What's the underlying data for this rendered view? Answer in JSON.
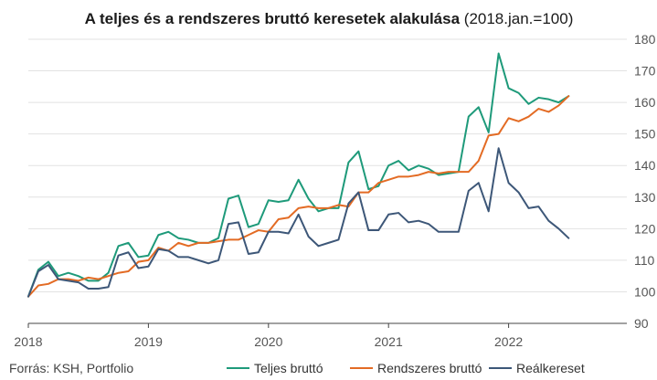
{
  "chart_data": {
    "type": "line",
    "title_bold": "A teljes és a rendszeres bruttó keresetek alakulása",
    "title_suffix": " (2018.jan.=100)",
    "source": "Forrás: KSH, Portfolio",
    "ylim": [
      90,
      180
    ],
    "y_ticks": [
      "90",
      "100",
      "110",
      "120",
      "130",
      "140",
      "150",
      "160",
      "170",
      "180"
    ],
    "y_tick_values": [
      90,
      100,
      110,
      120,
      130,
      140,
      150,
      160,
      170,
      180
    ],
    "x_ticks": [
      "2018",
      "2019",
      "2020",
      "2021",
      "2022"
    ],
    "x_tick_months": [
      0,
      12,
      24,
      36,
      48
    ],
    "x_start": "2018-01",
    "grid": "horizontal",
    "legend_position": "bottom",
    "series": [
      {
        "name": "Teljes bruttó",
        "color": "#1e9a7a",
        "values": [
          98.5,
          107,
          109.5,
          105,
          106,
          105,
          103.5,
          103.5,
          106,
          114.5,
          115.5,
          111,
          111.5,
          118,
          119,
          117,
          116.5,
          115.5,
          115.5,
          117,
          129.5,
          130.5,
          120.5,
          121.5,
          129,
          128.5,
          129,
          135.5,
          129.5,
          125.5,
          126.5,
          126.5,
          141,
          144.5,
          132.5,
          133.5,
          140,
          141.5,
          138.5,
          140,
          139,
          137,
          137.5,
          138,
          155.5,
          158.5,
          150.5,
          175.5,
          164.5,
          163,
          159.5,
          161.5,
          161,
          160,
          162
        ]
      },
      {
        "name": "Rendszeres bruttó",
        "color": "#e36b24",
        "values": [
          98.5,
          102,
          102.5,
          104,
          104,
          103.5,
          104.5,
          104,
          105,
          106,
          106.5,
          109.5,
          110,
          114,
          113,
          115.5,
          114.5,
          115.5,
          115.5,
          116,
          116.5,
          116.5,
          118,
          119.5,
          119,
          123,
          123.5,
          126.5,
          127,
          126.5,
          126.5,
          127.5,
          127,
          131.5,
          131.5,
          134.5,
          135.5,
          136.5,
          136.5,
          137,
          138,
          137.5,
          138,
          138,
          138,
          141.5,
          149.5,
          150,
          155,
          154,
          155.5,
          158,
          157,
          159,
          162
        ]
      },
      {
        "name": "Reálkereset",
        "color": "#3d5778",
        "values": [
          98.5,
          106.5,
          108.5,
          104,
          103.5,
          103,
          101,
          101,
          101.5,
          111.5,
          112.5,
          107.5,
          108,
          113.5,
          113,
          111,
          111,
          110,
          109,
          110,
          121.5,
          122,
          112,
          112.5,
          119,
          119,
          118.5,
          124.5,
          117.5,
          114.5,
          115.5,
          116.5,
          128,
          131.5,
          119.5,
          119.5,
          124.5,
          125,
          122,
          122.5,
          121.5,
          119,
          119,
          119,
          132,
          134.5,
          125.5,
          145.5,
          134.5,
          131.5,
          126.5,
          127,
          122.5,
          120,
          117
        ]
      }
    ]
  }
}
